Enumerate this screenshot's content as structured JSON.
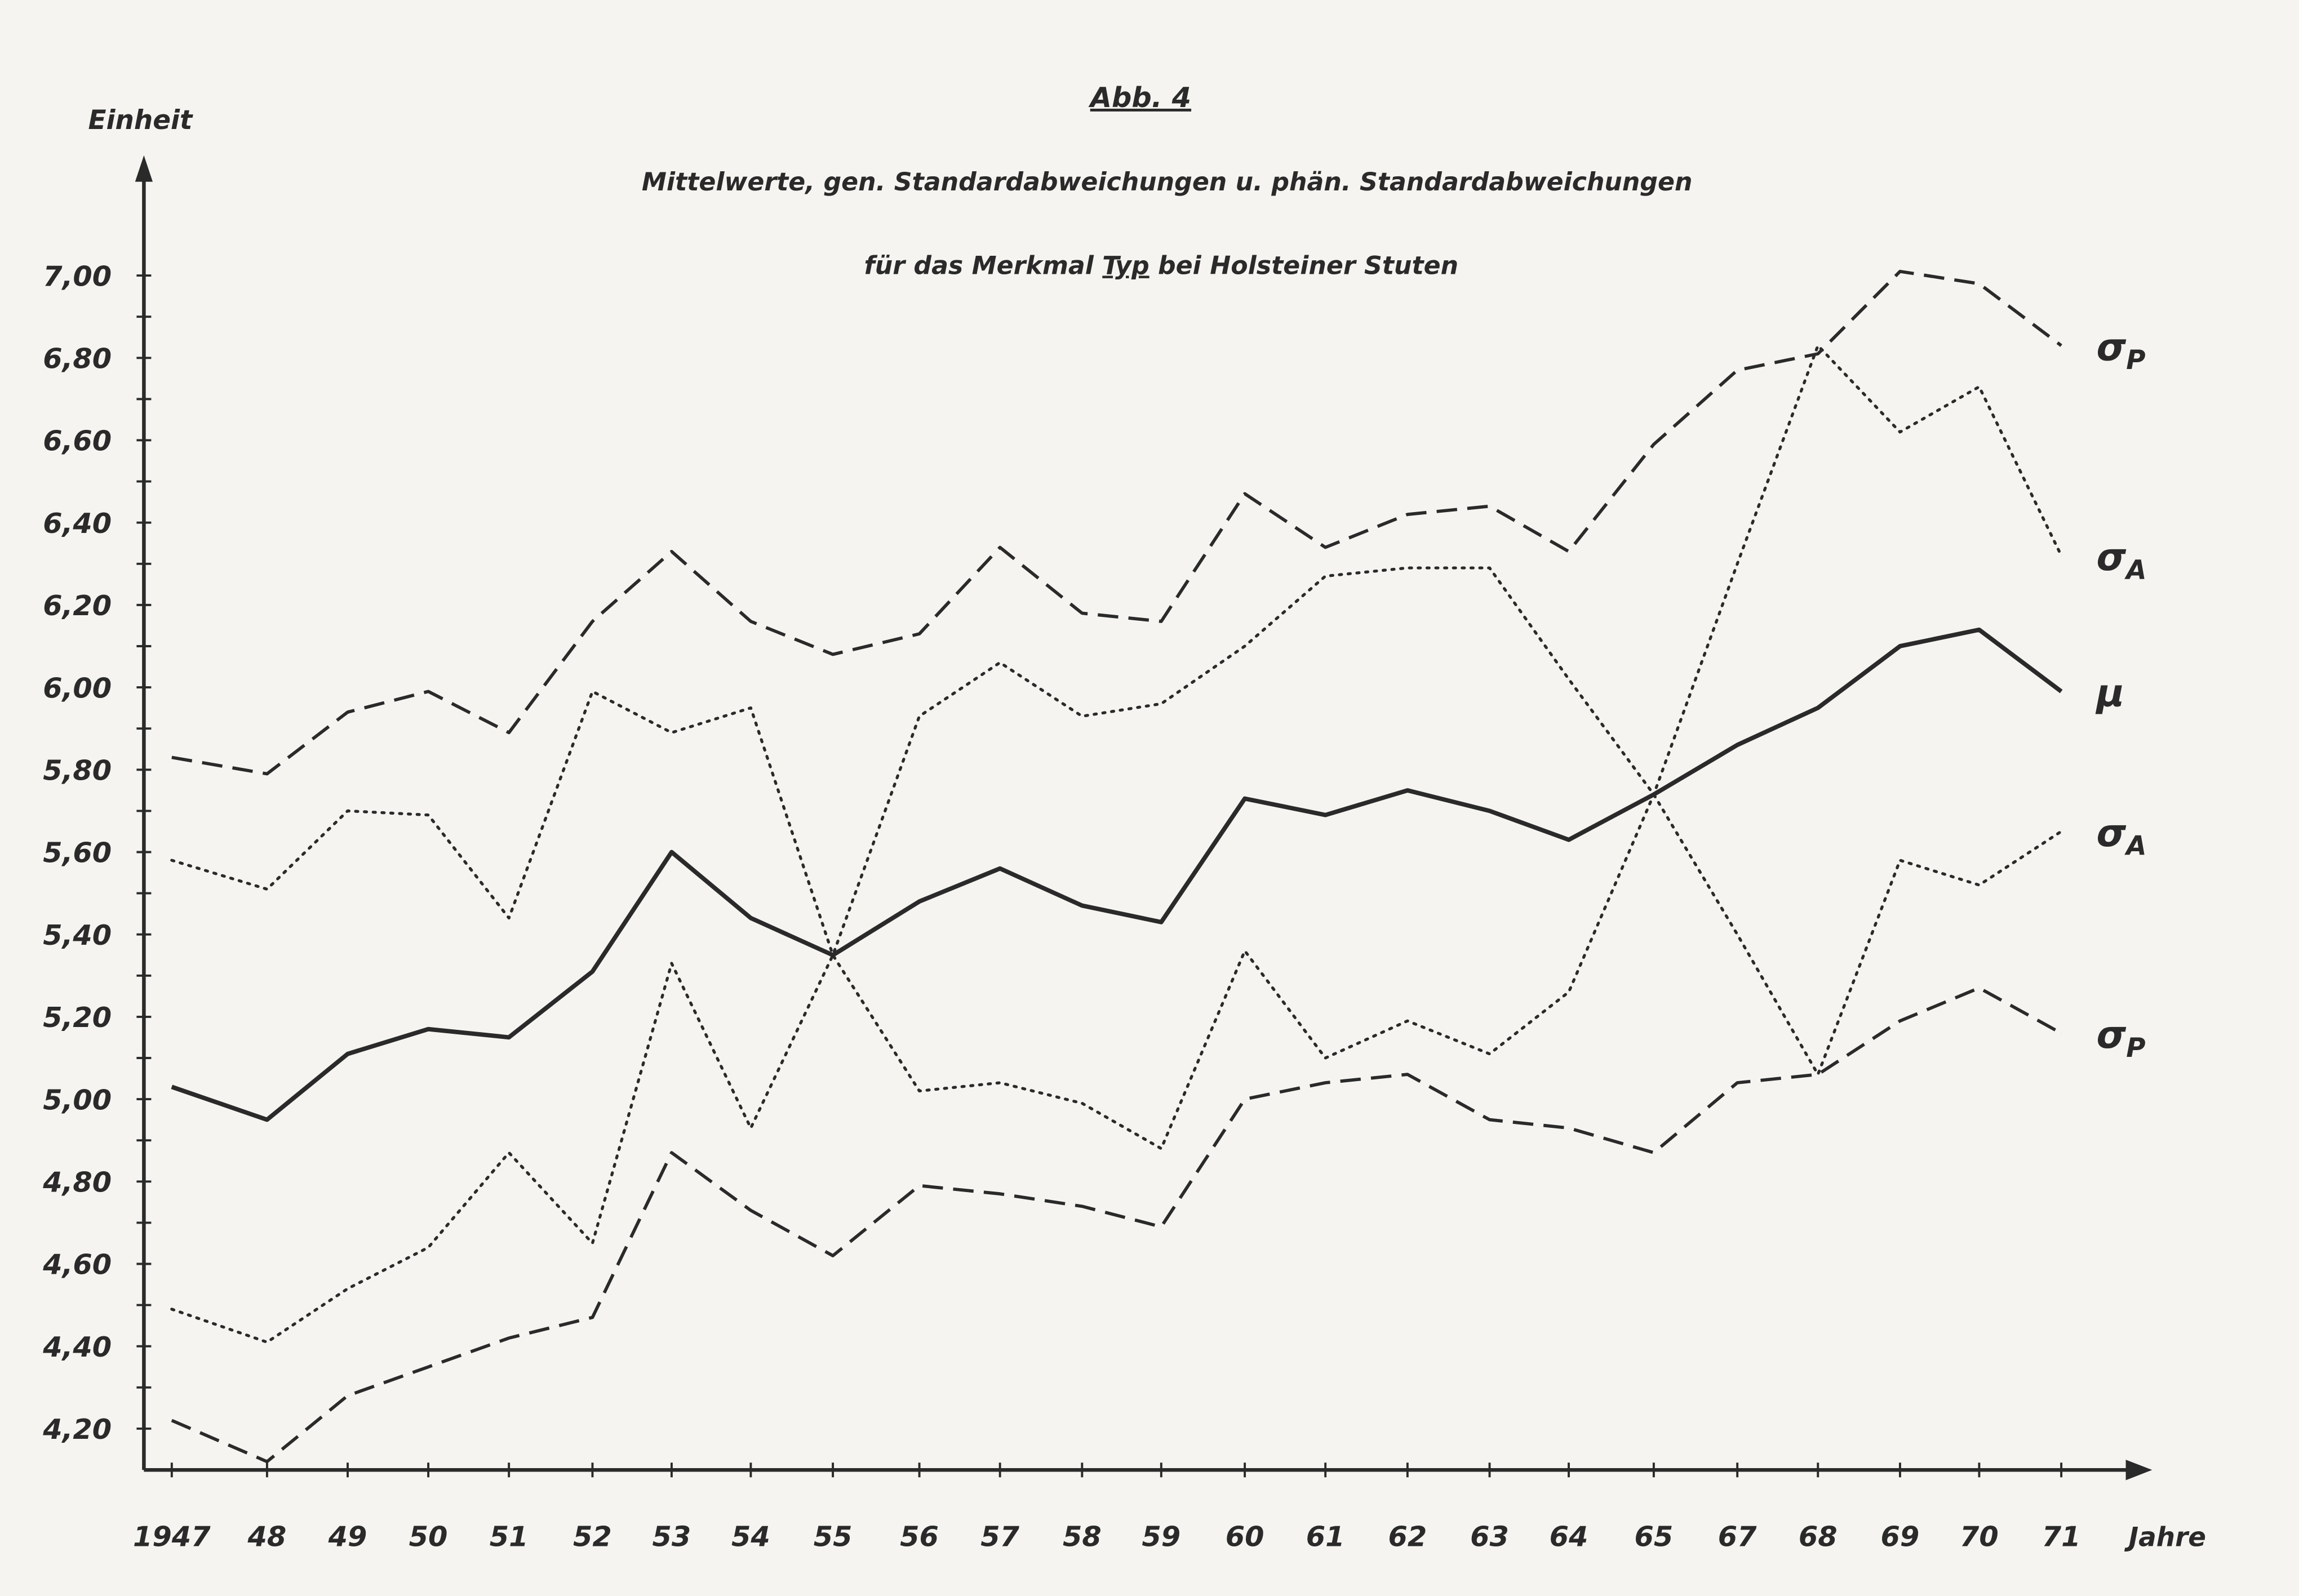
{
  "chart_data": {
    "type": "line",
    "figure_label": "Abb. 4",
    "title_line1": "Mittelwerte,  gen. Standardabweichungen u. phän. Standardabweichungen",
    "title_line2_prefix": "für  das  Merkmal ",
    "title_line2_underlined": "Typ",
    "title_line2_suffix": "  bei  Holsteiner Stuten",
    "ylabel": "Einheit",
    "xlabel": "Jahre",
    "ylim": [
      4.1,
      7.1
    ],
    "yticks": [
      "4,20",
      "4,40",
      "4,60",
      "4,80",
      "5,00",
      "5,20",
      "5,40",
      "5,60",
      "5,80",
      "6,00",
      "6,20",
      "6,40",
      "6,60",
      "6,80",
      "7,00"
    ],
    "ytick_values": [
      4.2,
      4.4,
      4.6,
      4.8,
      5.0,
      5.2,
      5.4,
      5.6,
      5.8,
      6.0,
      6.2,
      6.4,
      6.6,
      6.8,
      7.0
    ],
    "categories": [
      "1947",
      "48",
      "49",
      "50",
      "51",
      "52",
      "53",
      "54",
      "55",
      "56",
      "57",
      "58",
      "59",
      "60",
      "61",
      "62",
      "63",
      "64",
      "65",
      "67",
      "68",
      "69",
      "70",
      "71"
    ],
    "series": [
      {
        "name": "σP (oben)",
        "label_main": "σ",
        "label_sub": "P",
        "style": "dashed",
        "values": [
          5.83,
          5.79,
          5.94,
          5.99,
          5.89,
          6.16,
          6.33,
          6.16,
          6.08,
          6.13,
          6.34,
          6.18,
          6.16,
          6.47,
          6.34,
          6.42,
          6.44,
          6.33,
          6.59,
          6.77,
          6.81,
          7.01,
          6.98,
          6.83
        ]
      },
      {
        "name": "σA (oben)",
        "label_main": "σ",
        "label_sub": "A",
        "style": "dotted",
        "values": [
          5.58,
          5.51,
          5.7,
          5.69,
          5.44,
          5.99,
          5.89,
          5.95,
          5.35,
          5.02,
          5.04,
          4.99,
          4.88,
          5.36,
          5.1,
          5.19,
          5.11,
          5.26,
          5.74,
          6.3,
          6.83,
          6.62,
          6.73,
          6.32
        ]
      },
      {
        "name": "μ",
        "label_main": "μ",
        "label_sub": "",
        "style": "solid",
        "values": [
          5.03,
          4.95,
          5.11,
          5.17,
          5.15,
          5.31,
          5.6,
          5.44,
          5.35,
          5.48,
          5.56,
          5.47,
          5.43,
          5.73,
          5.69,
          5.75,
          5.7,
          5.63,
          5.74,
          5.86,
          5.95,
          6.1,
          6.14,
          5.99
        ]
      },
      {
        "name": "σA (unten)",
        "label_main": "σ",
        "label_sub": "A",
        "style": "dotted",
        "values": [
          4.49,
          4.41,
          4.54,
          4.64,
          4.87,
          4.65,
          5.33,
          4.93,
          5.35,
          5.93,
          6.06,
          5.93,
          5.96,
          6.1,
          6.27,
          6.29,
          6.29,
          6.02,
          5.74,
          5.4,
          5.06,
          5.58,
          5.52,
          5.65
        ]
      },
      {
        "name": "σP (unten)",
        "label_main": "σ",
        "label_sub": "P",
        "style": "dashed",
        "values": [
          4.22,
          4.12,
          4.28,
          4.35,
          4.42,
          4.47,
          4.87,
          4.73,
          4.62,
          4.79,
          4.77,
          4.74,
          4.69,
          5.0,
          5.04,
          5.06,
          4.95,
          4.93,
          4.87,
          5.04,
          5.06,
          5.19,
          5.27,
          5.16
        ]
      }
    ],
    "legend": "right-end labels",
    "grid": false,
    "colors": {
      "ink": "#2a2a2a",
      "paper": "#f5f4f0"
    }
  }
}
